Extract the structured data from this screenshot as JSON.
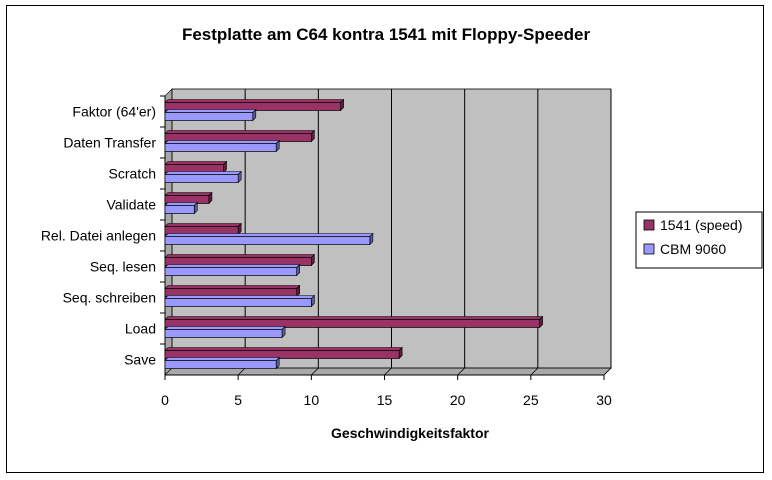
{
  "chart_data": {
    "type": "bar",
    "orientation": "horizontal",
    "title": "Festplatte am C64 kontra 1541 mit Floppy-Speeder",
    "xlabel": "Geschwindigkeitsfaktor",
    "ylabel": "",
    "xlim": [
      0,
      30
    ],
    "xticks": [
      0,
      5,
      10,
      15,
      20,
      25,
      30
    ],
    "grid": true,
    "legend_position": "right",
    "categories": [
      "Faktor (64'er)",
      "Daten Transfer",
      "Scratch",
      "Validate",
      "Rel. Datei anlegen",
      "Seq. lesen",
      "Seq. schreiben",
      "Load",
      "Save"
    ],
    "series": [
      {
        "name": "1541 (speed)",
        "color": "#993366",
        "values": [
          12,
          10,
          4,
          3,
          5,
          10,
          9,
          25.6,
          16
        ]
      },
      {
        "name": "CBM 9060",
        "color": "#9999ff",
        "values": [
          6,
          7.6,
          5,
          2,
          14,
          9,
          10,
          8,
          7.6
        ]
      }
    ]
  }
}
